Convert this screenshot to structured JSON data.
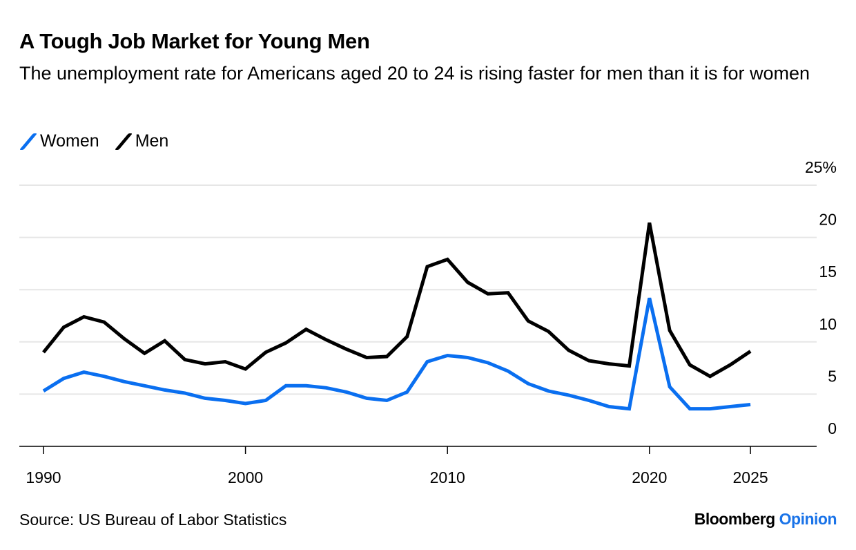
{
  "title": "A Tough Job Market for Young Men",
  "subtitle": "The unemployment rate for Americans aged 20 to 24 is rising faster for men than it is for women",
  "source": "Source: US Bureau of Labor Statistics",
  "logo": {
    "brand": "Bloomberg",
    "section": "Opinion"
  },
  "colors": {
    "women": "#0a6ff0",
    "men": "#000000",
    "grid": "#e6e6e6",
    "logo_accent": "#1a73e8"
  },
  "chart_data": {
    "type": "line",
    "title": "A Tough Job Market for Young Men",
    "xlabel": "",
    "ylabel": "",
    "xlim": [
      1989,
      2028
    ],
    "ylim": [
      0,
      25
    ],
    "grid": true,
    "legend": "top-left",
    "y_axis_side": "right",
    "x_ticks": [
      "1990",
      "2000",
      "2010",
      "2020",
      "2025"
    ],
    "y_ticks": [
      "0",
      "5",
      "10",
      "15",
      "20",
      "25%"
    ],
    "x": [
      1990,
      1991,
      1992,
      1993,
      1994,
      1995,
      1996,
      1997,
      1998,
      1999,
      2000,
      2001,
      2002,
      2003,
      2004,
      2005,
      2006,
      2007,
      2008,
      2009,
      2010,
      2011,
      2012,
      2013,
      2014,
      2015,
      2016,
      2017,
      2018,
      2019,
      2020,
      2021,
      2022,
      2023,
      2024,
      2025
    ],
    "series": [
      {
        "name": "Women",
        "color": "#0a6ff0",
        "values": [
          5.3,
          6.5,
          7.1,
          6.7,
          6.2,
          5.8,
          5.4,
          5.1,
          4.6,
          4.4,
          4.1,
          4.4,
          5.8,
          5.8,
          5.6,
          5.2,
          4.6,
          4.4,
          5.2,
          8.1,
          8.7,
          8.5,
          8.0,
          7.2,
          6.0,
          5.3,
          4.9,
          4.4,
          3.8,
          3.6,
          14.2,
          5.7,
          3.6,
          3.6,
          3.8,
          4.0
        ]
      },
      {
        "name": "Men",
        "color": "#000000",
        "values": [
          9.0,
          11.4,
          12.4,
          11.9,
          10.3,
          8.9,
          10.1,
          8.3,
          7.9,
          8.1,
          7.4,
          9.0,
          9.9,
          11.2,
          10.2,
          9.3,
          8.5,
          8.6,
          10.5,
          17.2,
          17.9,
          15.7,
          14.6,
          14.7,
          12.0,
          11.0,
          9.2,
          8.2,
          7.9,
          7.7,
          21.4,
          11.1,
          7.8,
          6.7,
          7.8,
          9.1
        ]
      }
    ]
  }
}
